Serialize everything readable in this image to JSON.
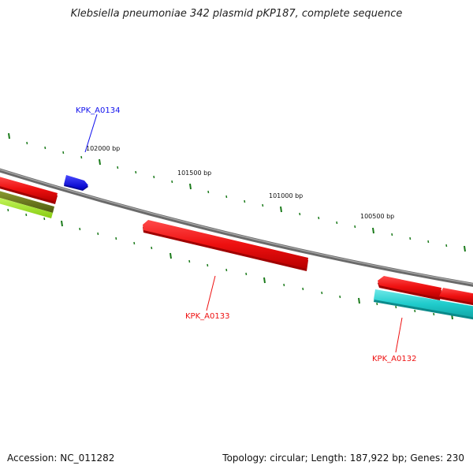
{
  "title": "Klebsiella pneumoniae 342 plasmid pKP187, complete sequence",
  "footer": {
    "accession": "Accession: NC_011282",
    "summary": "Topology: circular; Length: 187,922 bp; Genes: 230"
  },
  "ruler": {
    "labels": [
      "102000 bp",
      "101500 bp",
      "101000 bp",
      "100500 bp"
    ],
    "tick_color": "#1a7a1a"
  },
  "backbone_color": "#808080",
  "genes": [
    {
      "id": "KPK_A0134",
      "strand": "forward",
      "color": "#1010ee",
      "labeled": true
    },
    {
      "id": "KPK_A0133",
      "strand": "reverse",
      "color": "#ee1010",
      "labeled": true
    },
    {
      "id": "KPK_A0132",
      "strand": "reverse",
      "color": "#ee1010",
      "labeled": true
    },
    {
      "id": "",
      "strand": "reverse",
      "color": "#ee1010",
      "labeled": false
    },
    {
      "id": "",
      "strand": "reverse",
      "color": "#ee1010",
      "labeled": false
    },
    {
      "id": "",
      "strand": "reverse",
      "color": "#20cccc",
      "labeled": false
    },
    {
      "id": "",
      "strand": "reverse",
      "color": "#6e7d1c",
      "labeled": false
    },
    {
      "id": "",
      "strand": "reverse",
      "color": "#a6e81e",
      "labeled": false
    }
  ]
}
